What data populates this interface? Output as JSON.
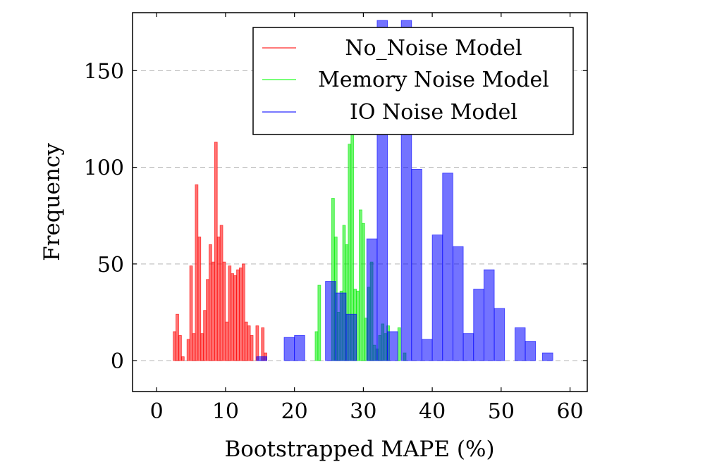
{
  "chart_data": {
    "type": "bar",
    "title": "",
    "xlabel": "Bootstrapped MAPE (%)",
    "ylabel": "Frequency",
    "xlim": [
      -3.5,
      62.5
    ],
    "ylim": [
      -16,
      180
    ],
    "xticks": [
      0,
      10,
      20,
      30,
      40,
      50,
      60
    ],
    "yticks": [
      0,
      50,
      100,
      150
    ],
    "xtick_labels": [
      "0",
      "10",
      "20",
      "30",
      "40",
      "50",
      "60"
    ],
    "ytick_labels": [
      "0",
      "50",
      "100",
      "150"
    ],
    "grid": "horizontal dashed",
    "legend_position": "top-right",
    "series": [
      {
        "name": "No_Noise Model",
        "legend_label": "No_Noise Model",
        "color": "#ff0000",
        "bins": [
          {
            "x0": 2.4,
            "x1": 2.8,
            "value": 15
          },
          {
            "x0": 2.8,
            "x1": 3.2,
            "value": 24
          },
          {
            "x0": 3.2,
            "x1": 3.6,
            "value": 13
          },
          {
            "x0": 3.6,
            "x1": 4.0,
            "value": 2
          },
          {
            "x0": 4.0,
            "x1": 4.4,
            "value": 0
          },
          {
            "x0": 4.4,
            "x1": 4.8,
            "value": 11
          },
          {
            "x0": 4.8,
            "x1": 5.2,
            "value": 49
          },
          {
            "x0": 5.2,
            "x1": 5.6,
            "value": 14
          },
          {
            "x0": 5.6,
            "x1": 6.0,
            "value": 91
          },
          {
            "x0": 6.0,
            "x1": 6.4,
            "value": 64
          },
          {
            "x0": 6.4,
            "x1": 6.8,
            "value": 14
          },
          {
            "x0": 6.8,
            "x1": 7.2,
            "value": 26
          },
          {
            "x0": 7.2,
            "x1": 7.6,
            "value": 42
          },
          {
            "x0": 7.6,
            "x1": 8.0,
            "value": 60
          },
          {
            "x0": 8.0,
            "x1": 8.4,
            "value": 51
          },
          {
            "x0": 8.4,
            "x1": 8.8,
            "value": 113
          },
          {
            "x0": 8.8,
            "x1": 9.2,
            "value": 64
          },
          {
            "x0": 9.2,
            "x1": 9.6,
            "value": 70
          },
          {
            "x0": 9.6,
            "x1": 10.0,
            "value": 51
          },
          {
            "x0": 10.0,
            "x1": 10.4,
            "value": 20
          },
          {
            "x0": 10.4,
            "x1": 10.8,
            "value": 49
          },
          {
            "x0": 10.8,
            "x1": 11.2,
            "value": 45
          },
          {
            "x0": 11.2,
            "x1": 11.6,
            "value": 44
          },
          {
            "x0": 11.6,
            "x1": 12.0,
            "value": 47
          },
          {
            "x0": 12.0,
            "x1": 12.4,
            "value": 48
          },
          {
            "x0": 12.4,
            "x1": 12.8,
            "value": 50
          },
          {
            "x0": 12.8,
            "x1": 13.2,
            "value": 20
          },
          {
            "x0": 13.2,
            "x1": 13.6,
            "value": 18
          },
          {
            "x0": 13.6,
            "x1": 14.0,
            "value": 13
          },
          {
            "x0": 14.0,
            "x1": 14.4,
            "value": 0
          },
          {
            "x0": 14.4,
            "x1": 14.8,
            "value": 18
          },
          {
            "x0": 14.8,
            "x1": 15.2,
            "value": 0
          },
          {
            "x0": 15.2,
            "x1": 15.6,
            "value": 17
          },
          {
            "x0": 15.6,
            "x1": 16.0,
            "value": 4
          }
        ]
      },
      {
        "name": "Memory Noise Model",
        "legend_label": "Memory Noise Model",
        "color": "#00ee00",
        "bins": [
          {
            "x0": 23.0,
            "x1": 23.4,
            "value": 15
          },
          {
            "x0": 23.4,
            "x1": 23.8,
            "value": 39
          },
          {
            "x0": 23.8,
            "x1": 24.2,
            "value": 0
          },
          {
            "x0": 24.2,
            "x1": 24.6,
            "value": 0
          },
          {
            "x0": 24.6,
            "x1": 25.0,
            "value": 0
          },
          {
            "x0": 25.0,
            "x1": 25.4,
            "value": 0
          },
          {
            "x0": 25.4,
            "x1": 25.8,
            "value": 84
          },
          {
            "x0": 25.8,
            "x1": 26.2,
            "value": 64
          },
          {
            "x0": 26.2,
            "x1": 26.6,
            "value": 25
          },
          {
            "x0": 26.6,
            "x1": 27.0,
            "value": 36
          },
          {
            "x0": 27.0,
            "x1": 27.4,
            "value": 70
          },
          {
            "x0": 27.4,
            "x1": 27.8,
            "value": 60
          },
          {
            "x0": 27.8,
            "x1": 28.2,
            "value": 112
          },
          {
            "x0": 28.2,
            "x1": 28.6,
            "value": 118
          },
          {
            "x0": 28.6,
            "x1": 29.0,
            "value": 37
          },
          {
            "x0": 29.0,
            "x1": 29.4,
            "value": 36
          },
          {
            "x0": 29.4,
            "x1": 29.8,
            "value": 78
          },
          {
            "x0": 29.8,
            "x1": 30.2,
            "value": 71
          },
          {
            "x0": 30.2,
            "x1": 30.6,
            "value": 22
          },
          {
            "x0": 30.6,
            "x1": 31.0,
            "value": 38
          },
          {
            "x0": 31.0,
            "x1": 31.4,
            "value": 51
          },
          {
            "x0": 31.4,
            "x1": 31.8,
            "value": 8
          },
          {
            "x0": 31.8,
            "x1": 32.2,
            "value": 6
          },
          {
            "x0": 32.2,
            "x1": 32.6,
            "value": 13
          },
          {
            "x0": 32.6,
            "x1": 33.0,
            "value": 19
          },
          {
            "x0": 33.0,
            "x1": 33.4,
            "value": 14
          },
          {
            "x0": 33.4,
            "x1": 33.8,
            "value": 18
          },
          {
            "x0": 33.8,
            "x1": 34.2,
            "value": 0
          },
          {
            "x0": 34.2,
            "x1": 34.6,
            "value": 0
          },
          {
            "x0": 34.6,
            "x1": 35.0,
            "value": 0
          },
          {
            "x0": 35.0,
            "x1": 35.4,
            "value": 17
          },
          {
            "x0": 35.4,
            "x1": 35.8,
            "value": 0
          },
          {
            "x0": 35.8,
            "x1": 36.2,
            "value": 4
          }
        ]
      },
      {
        "name": "IO Noise Model",
        "legend_label": "IO Noise Model",
        "color": "#0000ff",
        "bins": [
          {
            "x0": 14.5,
            "x1": 16.0,
            "value": 2
          },
          {
            "x0": 18.5,
            "x1": 20.0,
            "value": 12
          },
          {
            "x0": 20.0,
            "x1": 21.5,
            "value": 13
          },
          {
            "x0": 24.5,
            "x1": 26.0,
            "value": 41
          },
          {
            "x0": 26.0,
            "x1": 27.5,
            "value": 35
          },
          {
            "x0": 27.5,
            "x1": 29.0,
            "value": 24
          },
          {
            "x0": 30.5,
            "x1": 32.0,
            "value": 63
          },
          {
            "x0": 32.0,
            "x1": 33.5,
            "value": 176
          },
          {
            "x0": 33.5,
            "x1": 35.0,
            "value": 15
          },
          {
            "x0": 35.5,
            "x1": 37.0,
            "value": 176
          },
          {
            "x0": 37.0,
            "x1": 38.5,
            "value": 99
          },
          {
            "x0": 38.5,
            "x1": 40.0,
            "value": 11
          },
          {
            "x0": 40.0,
            "x1": 41.5,
            "value": 65
          },
          {
            "x0": 41.5,
            "x1": 43.0,
            "value": 97
          },
          {
            "x0": 43.0,
            "x1": 44.5,
            "value": 59
          },
          {
            "x0": 44.5,
            "x1": 46.0,
            "value": 14
          },
          {
            "x0": 46.0,
            "x1": 47.5,
            "value": 37
          },
          {
            "x0": 47.5,
            "x1": 49.0,
            "value": 47
          },
          {
            "x0": 49.0,
            "x1": 50.5,
            "value": 27
          },
          {
            "x0": 52.0,
            "x1": 53.5,
            "value": 17
          },
          {
            "x0": 53.5,
            "x1": 55.0,
            "value": 10
          },
          {
            "x0": 56.0,
            "x1": 57.5,
            "value": 4
          }
        ]
      }
    ]
  }
}
